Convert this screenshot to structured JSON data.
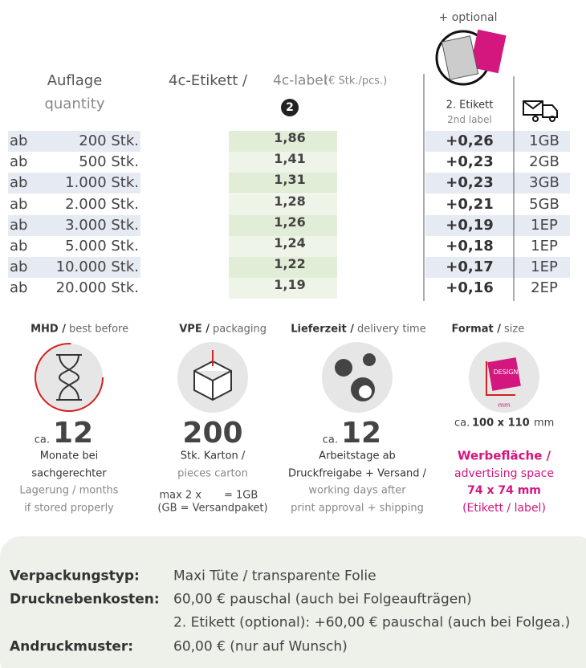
{
  "optional_label": "+ optional",
  "table": {
    "quantity_header": [
      "Auflage",
      "quantity"
    ],
    "price_header": [
      "4c-Etikett /",
      "4c-label",
      "(€ Stk./pcs.)"
    ],
    "price_badge": "2",
    "second_header": [
      "2. Etikett",
      "2nd label"
    ],
    "rows": [
      [
        "ab",
        "200 Stk.",
        "1,86",
        "+0,26",
        "1GB"
      ],
      [
        "ab",
        "500 Stk.",
        "1,41",
        "+0,23",
        "2GB"
      ],
      [
        "ab",
        "1.000 Stk.",
        "1,31",
        "+0,23",
        "3GB"
      ],
      [
        "ab",
        "2.000 Stk.",
        "1,28",
        "+0,21",
        "5GB"
      ],
      [
        "ab",
        "3.000 Stk.",
        "1,26",
        "+0,19",
        "1EP"
      ],
      [
        "ab",
        "5.000 Stk.",
        "1,24",
        "+0,18",
        "1EP"
      ],
      [
        "ab",
        "10.000 Stk.",
        "1,22",
        "+0,17",
        "1EP"
      ],
      [
        "ab",
        "20.000 Stk.",
        "1,19",
        "+0,16",
        "2EP"
      ]
    ]
  },
  "info": [
    {
      "title": "MHD /",
      "subtitle": "best before",
      "prefix": "ca.",
      "value": "12",
      "lines": [
        "Monate bei",
        "sachgerechter",
        "Lagerung / months",
        "if stored properly"
      ]
    },
    {
      "title": "VPE /",
      "subtitle": "packaging",
      "value": "200",
      "lines": [
        "Stk. Karton /",
        "pieces carton"
      ],
      "note": [
        "max 2 x",
        "= 1GB",
        "(GB = Versandpaket)"
      ]
    },
    {
      "title": "Lieferzeit /",
      "subtitle": "delivery time",
      "prefix": "ca.",
      "value": "12",
      "lines": [
        "Arbeitstage ab",
        "Druckfreigabe + Versand /",
        "working days after",
        "print approval + shipping"
      ]
    },
    {
      "title": "Format /",
      "subtitle": "size",
      "icon_labels": [
        "DESIGN",
        "mm"
      ],
      "prefix": "ca.",
      "value": "100 x 110",
      "unit": "mm",
      "lines": [
        "Werbefläche /",
        "advertising space",
        "74 x 74 mm",
        "(Etikett / label)"
      ]
    }
  ],
  "footer": [
    {
      "label": "Verpackungstyp:",
      "value": "Maxi Tüte / transparente Folie"
    },
    {
      "label": "Drucknebenkosten:",
      "value": "60,00 € pauschal (auch bei Folgeaufträgen)"
    },
    {
      "value": "2. Etikett (optional): +60,00 € pauschal (auch bei Folgea.)"
    },
    {
      "label": "Andruckmuster:",
      "value": "60,00 € (nur auf Wunsch)"
    }
  ]
}
